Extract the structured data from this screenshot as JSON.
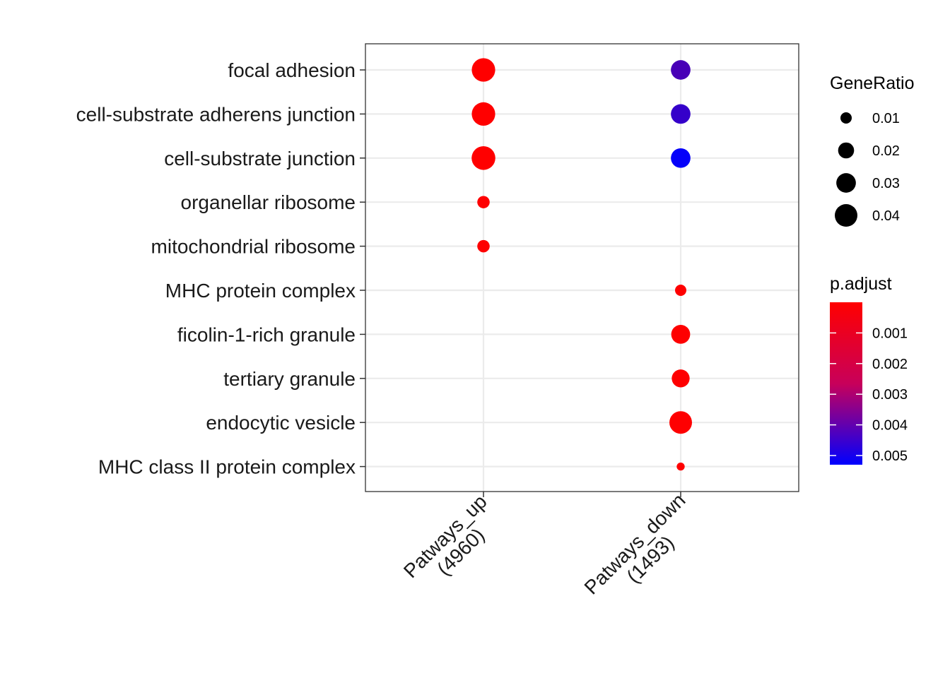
{
  "chart_data": {
    "type": "scatter",
    "categories_x": [
      "Patways_up\n(4960)",
      "Patways_down\n(1493)"
    ],
    "x_tick_lines": [
      [
        "Patways_up",
        "(4960)"
      ],
      [
        "Patways_down",
        "(1493)"
      ]
    ],
    "categories_y": [
      "focal adhesion",
      "cell-substrate adherens junction",
      "cell-substrate junction",
      "organellar ribosome",
      "mitochondrial ribosome",
      "MHC protein complex",
      "ficolin-1-rich granule",
      "tertiary granule",
      "endocytic vesicle",
      "MHC class II protein complex"
    ],
    "points": [
      {
        "x": "Patways_up\n(4960)",
        "y": "focal adhesion",
        "GeneRatio": 0.043,
        "p_adjust": 1e-05
      },
      {
        "x": "Patways_up\n(4960)",
        "y": "cell-substrate adherens junction",
        "GeneRatio": 0.043,
        "p_adjust": 1e-05
      },
      {
        "x": "Patways_up\n(4960)",
        "y": "cell-substrate junction",
        "GeneRatio": 0.044,
        "p_adjust": 1e-05
      },
      {
        "x": "Patways_up\n(4960)",
        "y": "organellar ribosome",
        "GeneRatio": 0.012,
        "p_adjust": 3e-05
      },
      {
        "x": "Patways_up\n(4960)",
        "y": "mitochondrial ribosome",
        "GeneRatio": 0.012,
        "p_adjust": 3e-05
      },
      {
        "x": "Patways_down\n(1493)",
        "y": "focal adhesion",
        "GeneRatio": 0.03,
        "p_adjust": 0.0038
      },
      {
        "x": "Patways_down\n(1493)",
        "y": "cell-substrate adherens junction",
        "GeneRatio": 0.03,
        "p_adjust": 0.0042
      },
      {
        "x": "Patways_down\n(1493)",
        "y": "cell-substrate junction",
        "GeneRatio": 0.03,
        "p_adjust": 0.0052
      },
      {
        "x": "Patways_down\n(1493)",
        "y": "MHC protein complex",
        "GeneRatio": 0.01,
        "p_adjust": 2e-05
      },
      {
        "x": "Patways_down\n(1493)",
        "y": "ficolin-1-rich granule",
        "GeneRatio": 0.028,
        "p_adjust": 2e-05
      },
      {
        "x": "Patways_down\n(1493)",
        "y": "tertiary granule",
        "GeneRatio": 0.025,
        "p_adjust": 2e-05
      },
      {
        "x": "Patways_down\n(1493)",
        "y": "endocytic vesicle",
        "GeneRatio": 0.04,
        "p_adjust": 2e-05
      },
      {
        "x": "Patways_down\n(1493)",
        "y": "MHC class II protein complex",
        "GeneRatio": 0.005,
        "p_adjust": 2e-05
      }
    ],
    "size_legend": {
      "title": "GeneRatio",
      "breaks": [
        0.01,
        0.02,
        0.03,
        0.04
      ],
      "labels": [
        "0.01",
        "0.02",
        "0.03",
        "0.04"
      ]
    },
    "color_legend": {
      "title": "p.adjust",
      "low_color": "#FF0000",
      "high_color": "#0000FF",
      "range": [
        0.0,
        0.0053
      ],
      "breaks": [
        0.001,
        0.002,
        0.003,
        0.004,
        0.005
      ],
      "labels": [
        "0.001",
        "0.002",
        "0.003",
        "0.004",
        "0.005"
      ]
    },
    "grid": true,
    "legend_position": "right"
  },
  "colors": {
    "grid": "#EBEBEB",
    "panel_border": "#333333",
    "text": "#1a1a1a"
  }
}
